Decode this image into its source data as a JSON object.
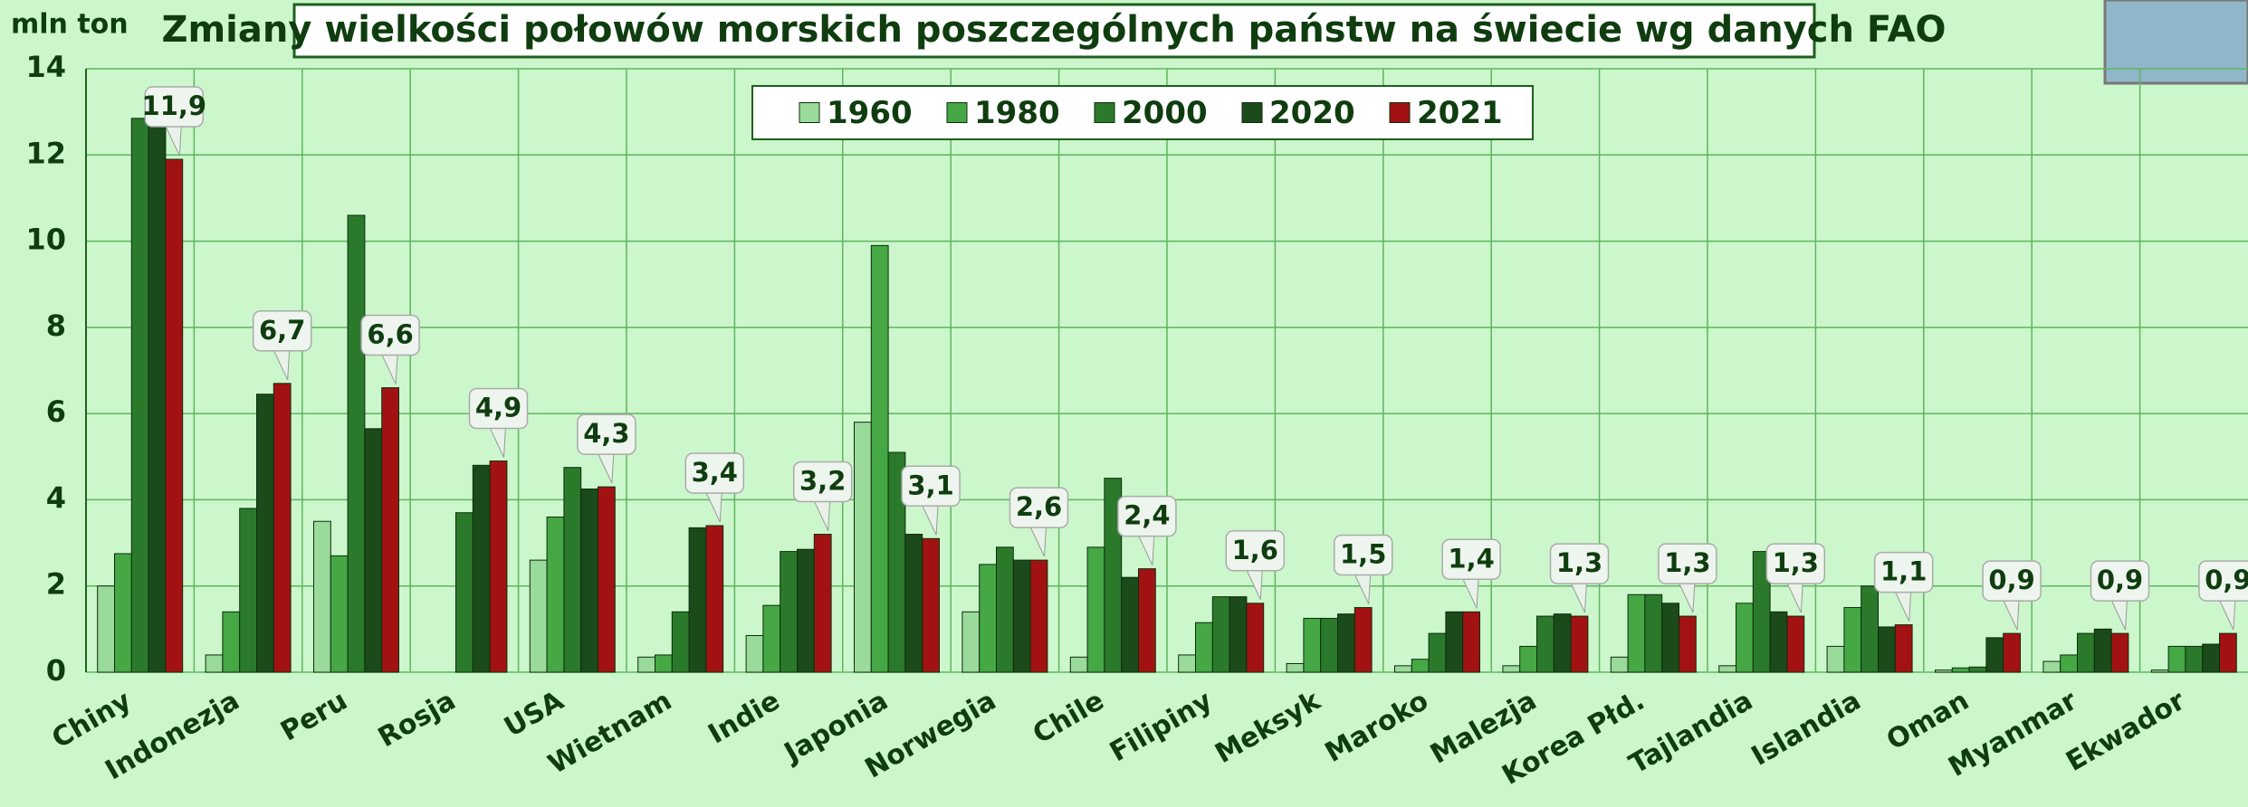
{
  "chart_data": {
    "type": "bar",
    "title": "Zmiany wielkości połowów morskich poszczególnych państw na świecie wg danych FAO",
    "y_label": "mln ton",
    "categories": [
      "Chiny",
      "Indonezja",
      "Peru",
      "Rosja",
      "USA",
      "Wietnam",
      "Indie",
      "Japonia",
      "Norwegia",
      "Chile",
      "Filipiny",
      "Meksyk",
      "Maroko",
      "Malezja",
      "Korea Płd.",
      "Tajlandia",
      "Islandia",
      "Oman",
      "Myanmar",
      "Ekwador"
    ],
    "series": [
      {
        "name": "1960",
        "color": "#9ada9a",
        "values": [
          2.0,
          0.4,
          3.5,
          null,
          2.6,
          0.35,
          0.85,
          5.8,
          1.4,
          0.35,
          0.4,
          0.2,
          0.15,
          0.15,
          0.35,
          0.15,
          0.6,
          0.05,
          0.25,
          0.05
        ]
      },
      {
        "name": "1980",
        "color": "#45a845",
        "values": [
          2.75,
          1.4,
          2.7,
          null,
          3.6,
          0.4,
          1.55,
          9.9,
          2.5,
          2.9,
          1.15,
          1.25,
          0.3,
          0.6,
          1.8,
          1.6,
          1.5,
          0.1,
          0.4,
          0.6
        ]
      },
      {
        "name": "2000",
        "color": "#2b7a2b",
        "values": [
          12.85,
          3.8,
          10.6,
          3.7,
          4.75,
          1.4,
          2.8,
          5.1,
          2.9,
          4.5,
          1.75,
          1.25,
          0.9,
          1.3,
          1.8,
          2.8,
          2.0,
          0.12,
          0.9,
          0.6
        ]
      },
      {
        "name": "2020",
        "color": "#1b4a1b",
        "values": [
          12.8,
          6.45,
          5.65,
          4.8,
          4.25,
          3.35,
          2.85,
          3.2,
          2.6,
          2.2,
          1.75,
          1.35,
          1.4,
          1.35,
          1.6,
          1.4,
          1.05,
          0.8,
          1.0,
          0.65
        ]
      },
      {
        "name": "2021",
        "color": "#a31212",
        "values": [
          11.9,
          6.7,
          6.6,
          4.9,
          4.3,
          3.4,
          3.2,
          3.1,
          2.6,
          2.4,
          1.6,
          1.5,
          1.4,
          1.3,
          1.3,
          1.3,
          1.1,
          0.9,
          0.9,
          0.9
        ],
        "value_labels": [
          "11,9",
          "6,7",
          "6,6",
          "4,9",
          "4,3",
          "3,4",
          "3,2",
          "3,1",
          "2,6",
          "2,4",
          "1,6",
          "1,5",
          "1,4",
          "1,3",
          "1,3",
          "1,3",
          "1,1",
          "0,9",
          "0,9",
          "0,9"
        ]
      }
    ],
    "ylim": [
      0,
      14
    ],
    "yticks": [
      0,
      2,
      4,
      6,
      8,
      10,
      12,
      14
    ],
    "grid": true
  }
}
